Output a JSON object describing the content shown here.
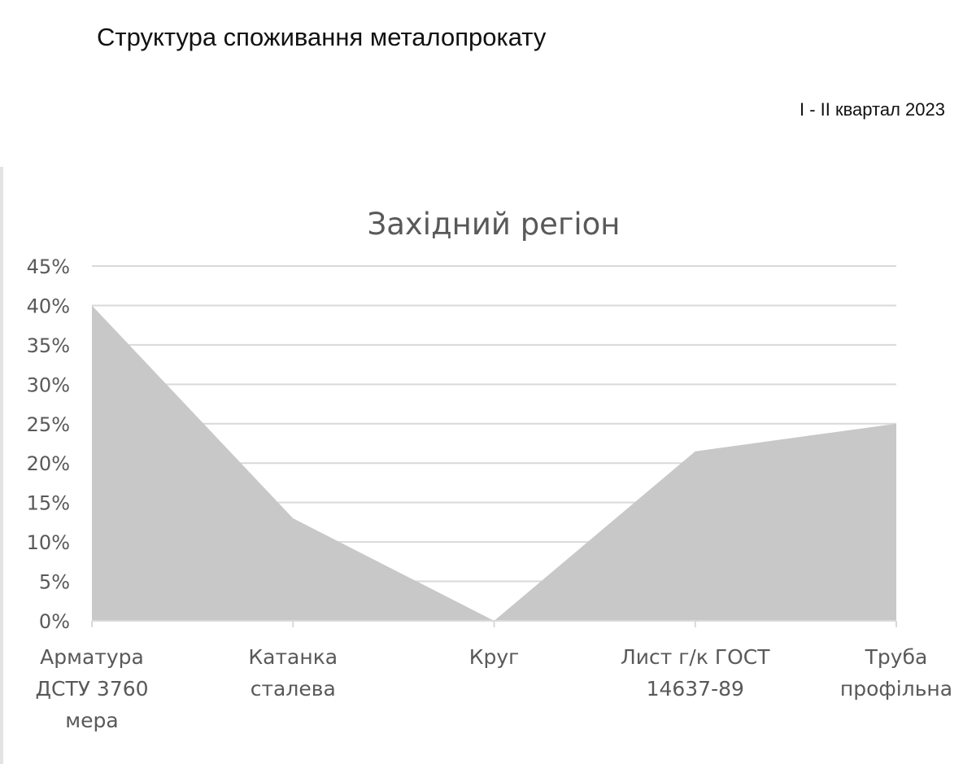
{
  "header": {
    "title": "Структура споживання металопрокату",
    "period": "I - II квартал 2023"
  },
  "chart_data": {
    "type": "area",
    "title": "Західний регіон",
    "categories": [
      [
        "Арматура",
        "ДСТУ 3760",
        "мера"
      ],
      [
        "Катанка",
        "сталева"
      ],
      [
        "Круг"
      ],
      [
        "Лист г/к ГОСТ",
        "14637-89"
      ],
      [
        "Труба",
        "профільна"
      ]
    ],
    "series": [
      {
        "values": [
          40,
          13,
          0,
          21.5,
          25
        ]
      }
    ],
    "ylim": [
      0,
      45
    ],
    "yticks": [
      0,
      5,
      10,
      15,
      20,
      25,
      30,
      35,
      40,
      45
    ],
    "ytick_labels": [
      "0%",
      "5%",
      "10%",
      "15%",
      "20%",
      "25%",
      "30%",
      "35%",
      "40%",
      "45%"
    ],
    "grid": true,
    "colors": {
      "fill": "#c8c8c8",
      "grid": "#d9d9d9",
      "axis_text": "#595959",
      "title_text": "#595959"
    }
  }
}
